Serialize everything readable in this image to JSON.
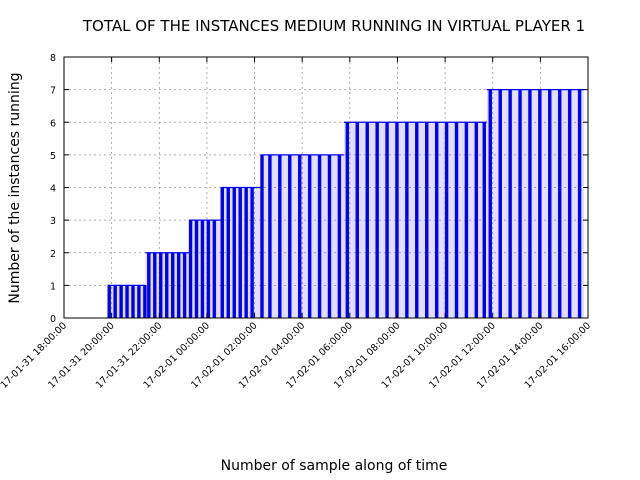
{
  "chart_data": {
    "type": "bar",
    "title": "TOTAL OF THE INSTANCES MEDIUM RUNNING IN VIRTUAL PLAYER 1",
    "xlabel": "Number of sample along of time",
    "ylabel": "Number of the instances running",
    "x_tick_labels": [
      "17-01-31 18:00:00",
      "17-01-31 20:00:00",
      "17-01-31 22:00:00",
      "17-02-01 00:00:00",
      "17-02-01 02:00:00",
      "17-02-01 04:00:00",
      "17-02-01 06:00:00",
      "17-02-01 08:00:00",
      "17-02-01 10:00:00",
      "17-02-01 12:00:00",
      "17-02-01 14:00:00",
      "17-02-01 16:00:00"
    ],
    "y_ticks": [
      0,
      1,
      2,
      3,
      4,
      5,
      6,
      7,
      8
    ],
    "ylim": [
      0,
      8
    ],
    "xlim": [
      "17-01-31 18:00:00",
      "17-02-01 16:00:00"
    ],
    "grid": true,
    "color": "#0000ee",
    "segments": [
      {
        "start": "17-01-31 19:50:00",
        "end": "17-01-31 21:25:00",
        "value": 1
      },
      {
        "start": "17-01-31 21:25:00",
        "end": "17-01-31 23:15:00",
        "value": 2
      },
      {
        "start": "17-01-31 23:15:00",
        "end": "17-02-01 00:35:00",
        "value": 3
      },
      {
        "start": "17-02-01 00:35:00",
        "end": "17-02-01 02:15:00",
        "value": 4
      },
      {
        "start": "17-02-01 02:15:00",
        "end": "17-02-01 05:45:00",
        "value": 5
      },
      {
        "start": "17-02-01 05:45:00",
        "end": "17-02-01 11:45:00",
        "value": 6
      },
      {
        "start": "17-02-01 11:45:00",
        "end": "17-02-01 15:50:00",
        "value": 7
      }
    ],
    "bars": [
      {
        "x": "17-01-31 19:50:00",
        "y": 1
      },
      {
        "x": "17-01-31 20:05:00",
        "y": 1
      },
      {
        "x": "17-01-31 20:20:00",
        "y": 1
      },
      {
        "x": "17-01-31 20:35:00",
        "y": 1
      },
      {
        "x": "17-01-31 20:50:00",
        "y": 1
      },
      {
        "x": "17-01-31 21:05:00",
        "y": 1
      },
      {
        "x": "17-01-31 21:20:00",
        "y": 1
      },
      {
        "x": "17-01-31 21:30:00",
        "y": 2
      },
      {
        "x": "17-01-31 21:45:00",
        "y": 2
      },
      {
        "x": "17-01-31 22:00:00",
        "y": 2
      },
      {
        "x": "17-01-31 22:15:00",
        "y": 2
      },
      {
        "x": "17-01-31 22:30:00",
        "y": 2
      },
      {
        "x": "17-01-31 22:45:00",
        "y": 2
      },
      {
        "x": "17-01-31 23:00:00",
        "y": 2
      },
      {
        "x": "17-01-31 23:15:00",
        "y": 3
      },
      {
        "x": "17-01-31 23:30:00",
        "y": 3
      },
      {
        "x": "17-01-31 23:45:00",
        "y": 3
      },
      {
        "x": "17-02-01 00:00:00",
        "y": 3
      },
      {
        "x": "17-02-01 00:15:00",
        "y": 3
      },
      {
        "x": "17-02-01 00:35:00",
        "y": 4
      },
      {
        "x": "17-02-01 00:50:00",
        "y": 4
      },
      {
        "x": "17-02-01 01:05:00",
        "y": 4
      },
      {
        "x": "17-02-01 01:20:00",
        "y": 4
      },
      {
        "x": "17-02-01 01:35:00",
        "y": 4
      },
      {
        "x": "17-02-01 01:50:00",
        "y": 4
      },
      {
        "x": "17-02-01 02:15:00",
        "y": 5
      },
      {
        "x": "17-02-01 02:35:00",
        "y": 5
      },
      {
        "x": "17-02-01 03:00:00",
        "y": 5
      },
      {
        "x": "17-02-01 03:25:00",
        "y": 5
      },
      {
        "x": "17-02-01 03:50:00",
        "y": 5
      },
      {
        "x": "17-02-01 04:15:00",
        "y": 5
      },
      {
        "x": "17-02-01 04:40:00",
        "y": 5
      },
      {
        "x": "17-02-01 05:05:00",
        "y": 5
      },
      {
        "x": "17-02-01 05:30:00",
        "y": 5
      },
      {
        "x": "17-02-01 05:50:00",
        "y": 6
      },
      {
        "x": "17-02-01 06:15:00",
        "y": 6
      },
      {
        "x": "17-02-01 06:40:00",
        "y": 6
      },
      {
        "x": "17-02-01 07:05:00",
        "y": 6
      },
      {
        "x": "17-02-01 07:30:00",
        "y": 6
      },
      {
        "x": "17-02-01 07:55:00",
        "y": 6
      },
      {
        "x": "17-02-01 08:20:00",
        "y": 6
      },
      {
        "x": "17-02-01 08:45:00",
        "y": 6
      },
      {
        "x": "17-02-01 09:10:00",
        "y": 6
      },
      {
        "x": "17-02-01 09:35:00",
        "y": 6
      },
      {
        "x": "17-02-01 10:00:00",
        "y": 6
      },
      {
        "x": "17-02-01 10:25:00",
        "y": 6
      },
      {
        "x": "17-02-01 10:50:00",
        "y": 6
      },
      {
        "x": "17-02-01 11:15:00",
        "y": 6
      },
      {
        "x": "17-02-01 11:35:00",
        "y": 6
      },
      {
        "x": "17-02-01 11:50:00",
        "y": 7
      },
      {
        "x": "17-02-01 12:15:00",
        "y": 7
      },
      {
        "x": "17-02-01 12:40:00",
        "y": 7
      },
      {
        "x": "17-02-01 13:05:00",
        "y": 7
      },
      {
        "x": "17-02-01 13:30:00",
        "y": 7
      },
      {
        "x": "17-02-01 13:55:00",
        "y": 7
      },
      {
        "x": "17-02-01 14:20:00",
        "y": 7
      },
      {
        "x": "17-02-01 14:45:00",
        "y": 7
      },
      {
        "x": "17-02-01 15:10:00",
        "y": 7
      },
      {
        "x": "17-02-01 15:35:00",
        "y": 7
      }
    ]
  }
}
